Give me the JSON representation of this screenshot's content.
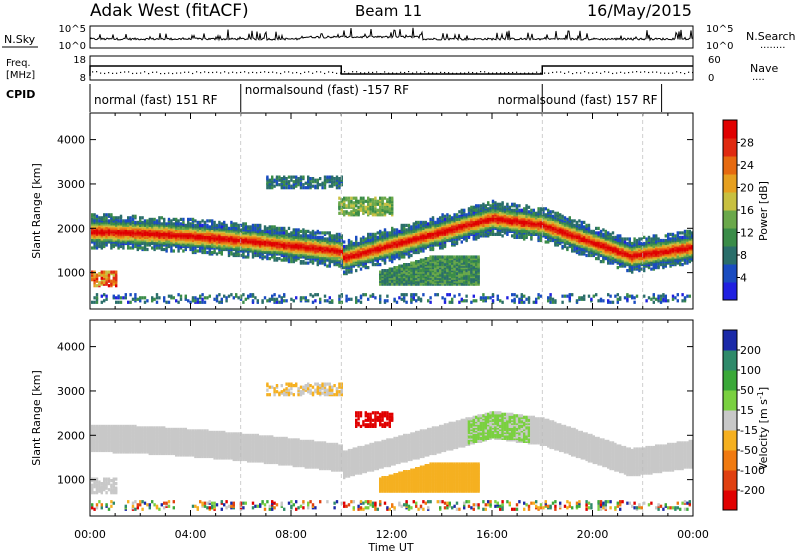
{
  "header": {
    "station": "Adak West (fitACF)",
    "beam": "Beam 11",
    "date": "16/May/2015"
  },
  "top_panels": {
    "nsky": {
      "label": "N.Sky",
      "left_ticks": [
        "10^5",
        "10^0"
      ],
      "right_ticks": [
        "10^5",
        "10^0"
      ],
      "right_label": "N.Search",
      "right_label_dots": "........"
    },
    "freq": {
      "label_line1": "Freq.",
      "label_line2": "[MHz]",
      "left_ticks": [
        "18",
        "8"
      ],
      "right_ticks": [
        "60",
        "0"
      ],
      "right_label": "Nave",
      "right_label_dots": "...."
    },
    "cpid": {
      "label": "CPID",
      "segments": [
        {
          "start_h": 0,
          "end_h": 6,
          "text": "normal (fast) 151 RF"
        },
        {
          "start_h": 6,
          "end_h": 18,
          "text": "normalsound (fast) -157 RF"
        },
        {
          "start_h": 18,
          "end_h": 22.75,
          "text": "normalsound (fast) 157 RF"
        }
      ]
    }
  },
  "chart_data": [
    {
      "type": "heatmap",
      "name": "power",
      "ylabel": "Slant Range [km]",
      "ylim": [
        180,
        4600
      ],
      "yticks": [
        "1000",
        "2000",
        "3000",
        "4000"
      ],
      "ytick_values": [
        1000,
        2000,
        3000,
        4000
      ],
      "xlim_hours": [
        0,
        24
      ],
      "colorbar": {
        "label": "Power [dB]",
        "range": [
          0,
          32
        ],
        "ticks": [
          "4",
          "8",
          "12",
          "16",
          "20",
          "24",
          "28"
        ],
        "tick_values": [
          4,
          8,
          12,
          16,
          20,
          24,
          28
        ],
        "colors": [
          "#2020e0",
          "#1a4cc0",
          "#2a6e6a",
          "#3a8c48",
          "#6aa84a",
          "#c8c040",
          "#e6a020",
          "#e66a10",
          "#e02a10",
          "#e00000"
        ]
      },
      "features": [
        {
          "kind": "band",
          "from_h": 0,
          "to_h": 10,
          "center_km": [
            1900,
            1800,
            1600,
            1450
          ],
          "color": "power"
        },
        {
          "kind": "band",
          "from_h": 10,
          "to_h": 16,
          "center_km": [
            1300,
            1600,
            2000,
            2200
          ],
          "color": "power"
        },
        {
          "kind": "band",
          "from_h": 18,
          "to_h": 24,
          "center_km": [
            2000,
            1400,
            1600
          ],
          "color": "power"
        },
        {
          "kind": "patch",
          "center_h": 13.8,
          "center_km": 1050,
          "color": "low-power"
        },
        {
          "kind": "patch",
          "center_h": 8.5,
          "center_km": 3000,
          "color": "low-power"
        },
        {
          "kind": "patch",
          "center_h": 11.0,
          "center_km": 2500,
          "color": "mid-power"
        }
      ]
    },
    {
      "type": "heatmap",
      "name": "velocity",
      "ylabel": "Slant Range [km]",
      "ylim": [
        180,
        4600
      ],
      "yticks": [
        "1000",
        "2000",
        "3000",
        "4000"
      ],
      "ytick_values": [
        1000,
        2000,
        3000,
        4000
      ],
      "xlim_hours": [
        0,
        24
      ],
      "xlabel": "Time UT",
      "xticks": [
        "00:00",
        "04:00",
        "08:00",
        "12:00",
        "16:00",
        "20:00",
        "00:00"
      ],
      "xtick_hours": [
        0,
        4,
        8,
        12,
        16,
        20,
        24
      ],
      "colorbar": {
        "label": "Velocity [m s",
        "label_sup": "-1",
        "label_end": "]",
        "ticks": [
          "200",
          "100",
          "50",
          "15",
          "-15",
          "-50",
          "-100",
          "-200"
        ],
        "colors": [
          "#1b2aa8",
          "#2f8a6a",
          "#3aa838",
          "#7ad040",
          "#c8c8c8",
          "#f5b020",
          "#f07a10",
          "#e04010",
          "#e00000"
        ]
      },
      "features": [
        {
          "kind": "band",
          "from_h": 0,
          "to_h": 24,
          "color": "ground-gray"
        },
        {
          "kind": "patch",
          "center_h": 13.5,
          "center_km": 1000,
          "color": "orange"
        },
        {
          "kind": "patch",
          "center_h": 16.3,
          "center_km": 2000,
          "color": "green"
        },
        {
          "kind": "patch",
          "center_h": 11.5,
          "center_km": 2300,
          "color": "red"
        }
      ]
    }
  ]
}
